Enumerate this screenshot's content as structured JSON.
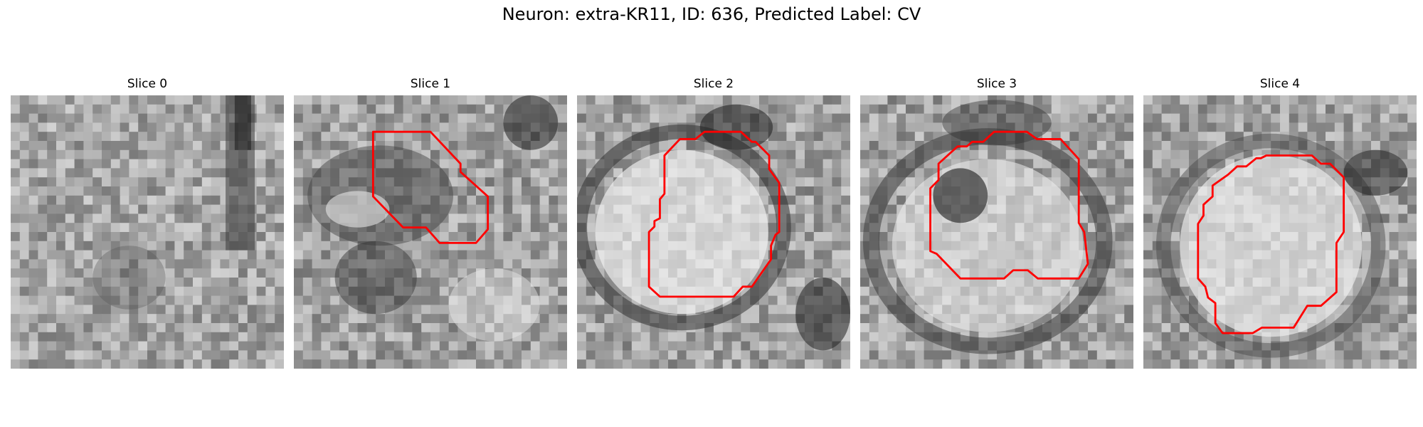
{
  "title": "Neuron: extra-KR11, ID: 636, Predicted Label: CV",
  "outline_color": "#ff0000",
  "panels": [
    {
      "label": "Slice 0",
      "has_outline": false
    },
    {
      "label": "Slice 1",
      "has_outline": true
    },
    {
      "label": "Slice 2",
      "has_outline": true
    },
    {
      "label": "Slice 3",
      "has_outline": true
    },
    {
      "label": "Slice 4",
      "has_outline": true
    }
  ]
}
